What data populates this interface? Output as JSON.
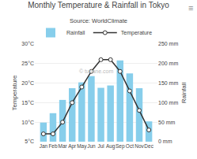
{
  "chart_data": {
    "type": "bar",
    "title": "Monthly Temperature & Rainfall in Tokyo",
    "subtitle": "Source: WorldClimate",
    "annotations": [
      "© tutlane.com",
      "≡"
    ],
    "categories": [
      "Jan",
      "Feb",
      "Mar",
      "Apr",
      "May",
      "Jun",
      "Jul",
      "Aug",
      "Sep",
      "Oct",
      "Nov",
      "Dec"
    ],
    "series": [
      {
        "name": "Rainfall",
        "type": "bar",
        "color": "#87CEEB",
        "axis": "y2",
        "values": [
          49,
          73,
          107,
          137,
          152,
          168,
          138,
          144,
          208,
          175,
          137,
          52
        ]
      },
      {
        "name": "Temperature",
        "type": "line",
        "color": "#333333",
        "marker": "circle",
        "values": [
          7,
          7,
          10,
          15,
          19,
          23,
          26,
          26,
          23,
          18,
          13,
          8
        ]
      }
    ],
    "ylabel": "Temperature",
    "y2label": "Rainfall",
    "ylim": [
      5,
      30
    ],
    "yticks": [
      {
        "value": 5,
        "label": "5°C"
      },
      {
        "value": 10,
        "label": "10°C"
      },
      {
        "value": 15,
        "label": "15°C"
      },
      {
        "value": 20,
        "label": "20°C"
      },
      {
        "value": 25,
        "label": "25°C"
      },
      {
        "value": 30,
        "label": "30°C"
      }
    ],
    "y2lim": [
      0,
      250
    ],
    "y2ticks": [
      {
        "value": 0,
        "label": "0 mm"
      },
      {
        "value": 50,
        "label": "50 mm"
      },
      {
        "value": 100,
        "label": "100 mm"
      },
      {
        "value": 150,
        "label": "150 mm"
      },
      {
        "value": 200,
        "label": "200 mm"
      },
      {
        "value": 250,
        "label": "250 mm"
      }
    ],
    "grid": true,
    "legend": "upper left"
  }
}
